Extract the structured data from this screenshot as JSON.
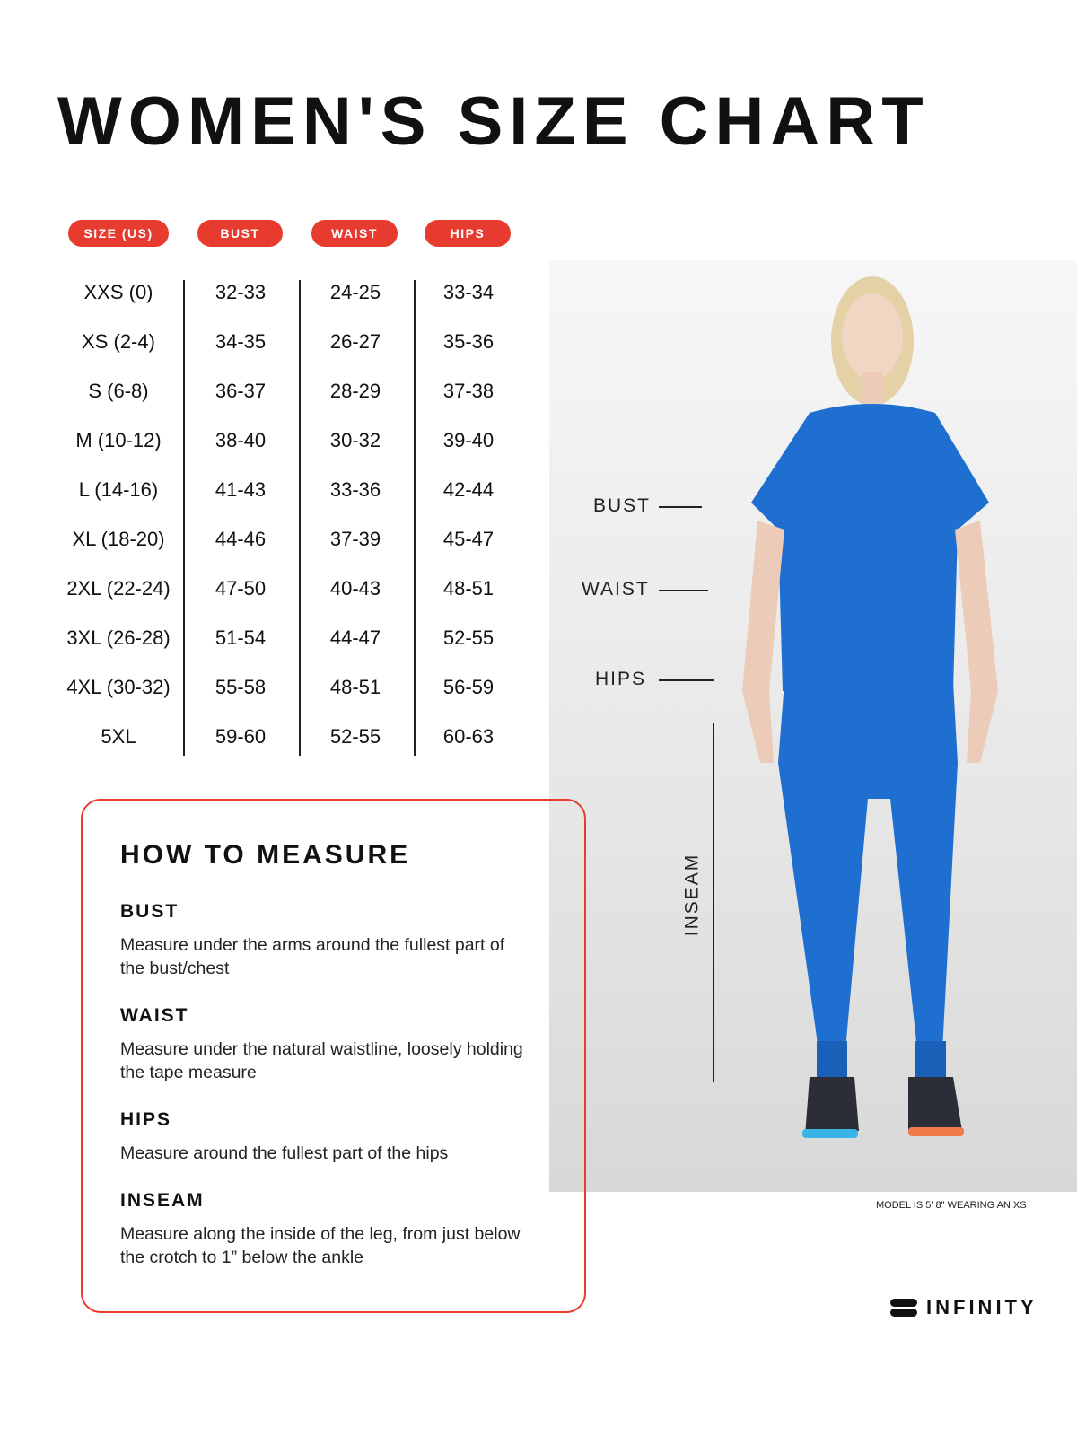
{
  "title": "WOMEN'S SIZE CHART",
  "colors": {
    "accent": "#e63b2e",
    "scrubs": "#1f6fd1"
  },
  "table": {
    "headers": [
      "SIZE (US)",
      "BUST",
      "WAIST",
      "HIPS"
    ],
    "rows": [
      [
        "XXS (0)",
        "32-33",
        "24-25",
        "33-34"
      ],
      [
        "XS (2-4)",
        "34-35",
        "26-27",
        "35-36"
      ],
      [
        "S (6-8)",
        "36-37",
        "28-29",
        "37-38"
      ],
      [
        "M (10-12)",
        "38-40",
        "30-32",
        "39-40"
      ],
      [
        "L (14-16)",
        "41-43",
        "33-36",
        "42-44"
      ],
      [
        "XL (18-20)",
        "44-46",
        "37-39",
        "45-47"
      ],
      [
        "2XL (22-24)",
        "47-50",
        "40-43",
        "48-51"
      ],
      [
        "3XL (26-28)",
        "51-54",
        "44-47",
        "52-55"
      ],
      [
        "4XL (30-32)",
        "55-58",
        "48-51",
        "56-59"
      ],
      [
        "5XL",
        "59-60",
        "52-55",
        "60-63"
      ]
    ]
  },
  "figure": {
    "labels": {
      "bust": "BUST",
      "waist": "WAIST",
      "hips": "HIPS",
      "inseam": "INSEAM"
    },
    "note": "MODEL IS 5' 8\" WEARING AN XS"
  },
  "measure": {
    "title": "HOW TO MEASURE",
    "sections": [
      {
        "heading": "BUST",
        "text": "Measure under the arms around the fullest part of the bust/chest"
      },
      {
        "heading": "WAIST",
        "text": "Measure under the natural waistline, loosely holding the tape measure"
      },
      {
        "heading": "HIPS",
        "text": "Measure around the fullest part of the hips"
      },
      {
        "heading": "INSEAM",
        "text": "Measure along the inside of the leg, from just below the crotch to 1” below the ankle"
      }
    ]
  },
  "brand": "INFINITY"
}
